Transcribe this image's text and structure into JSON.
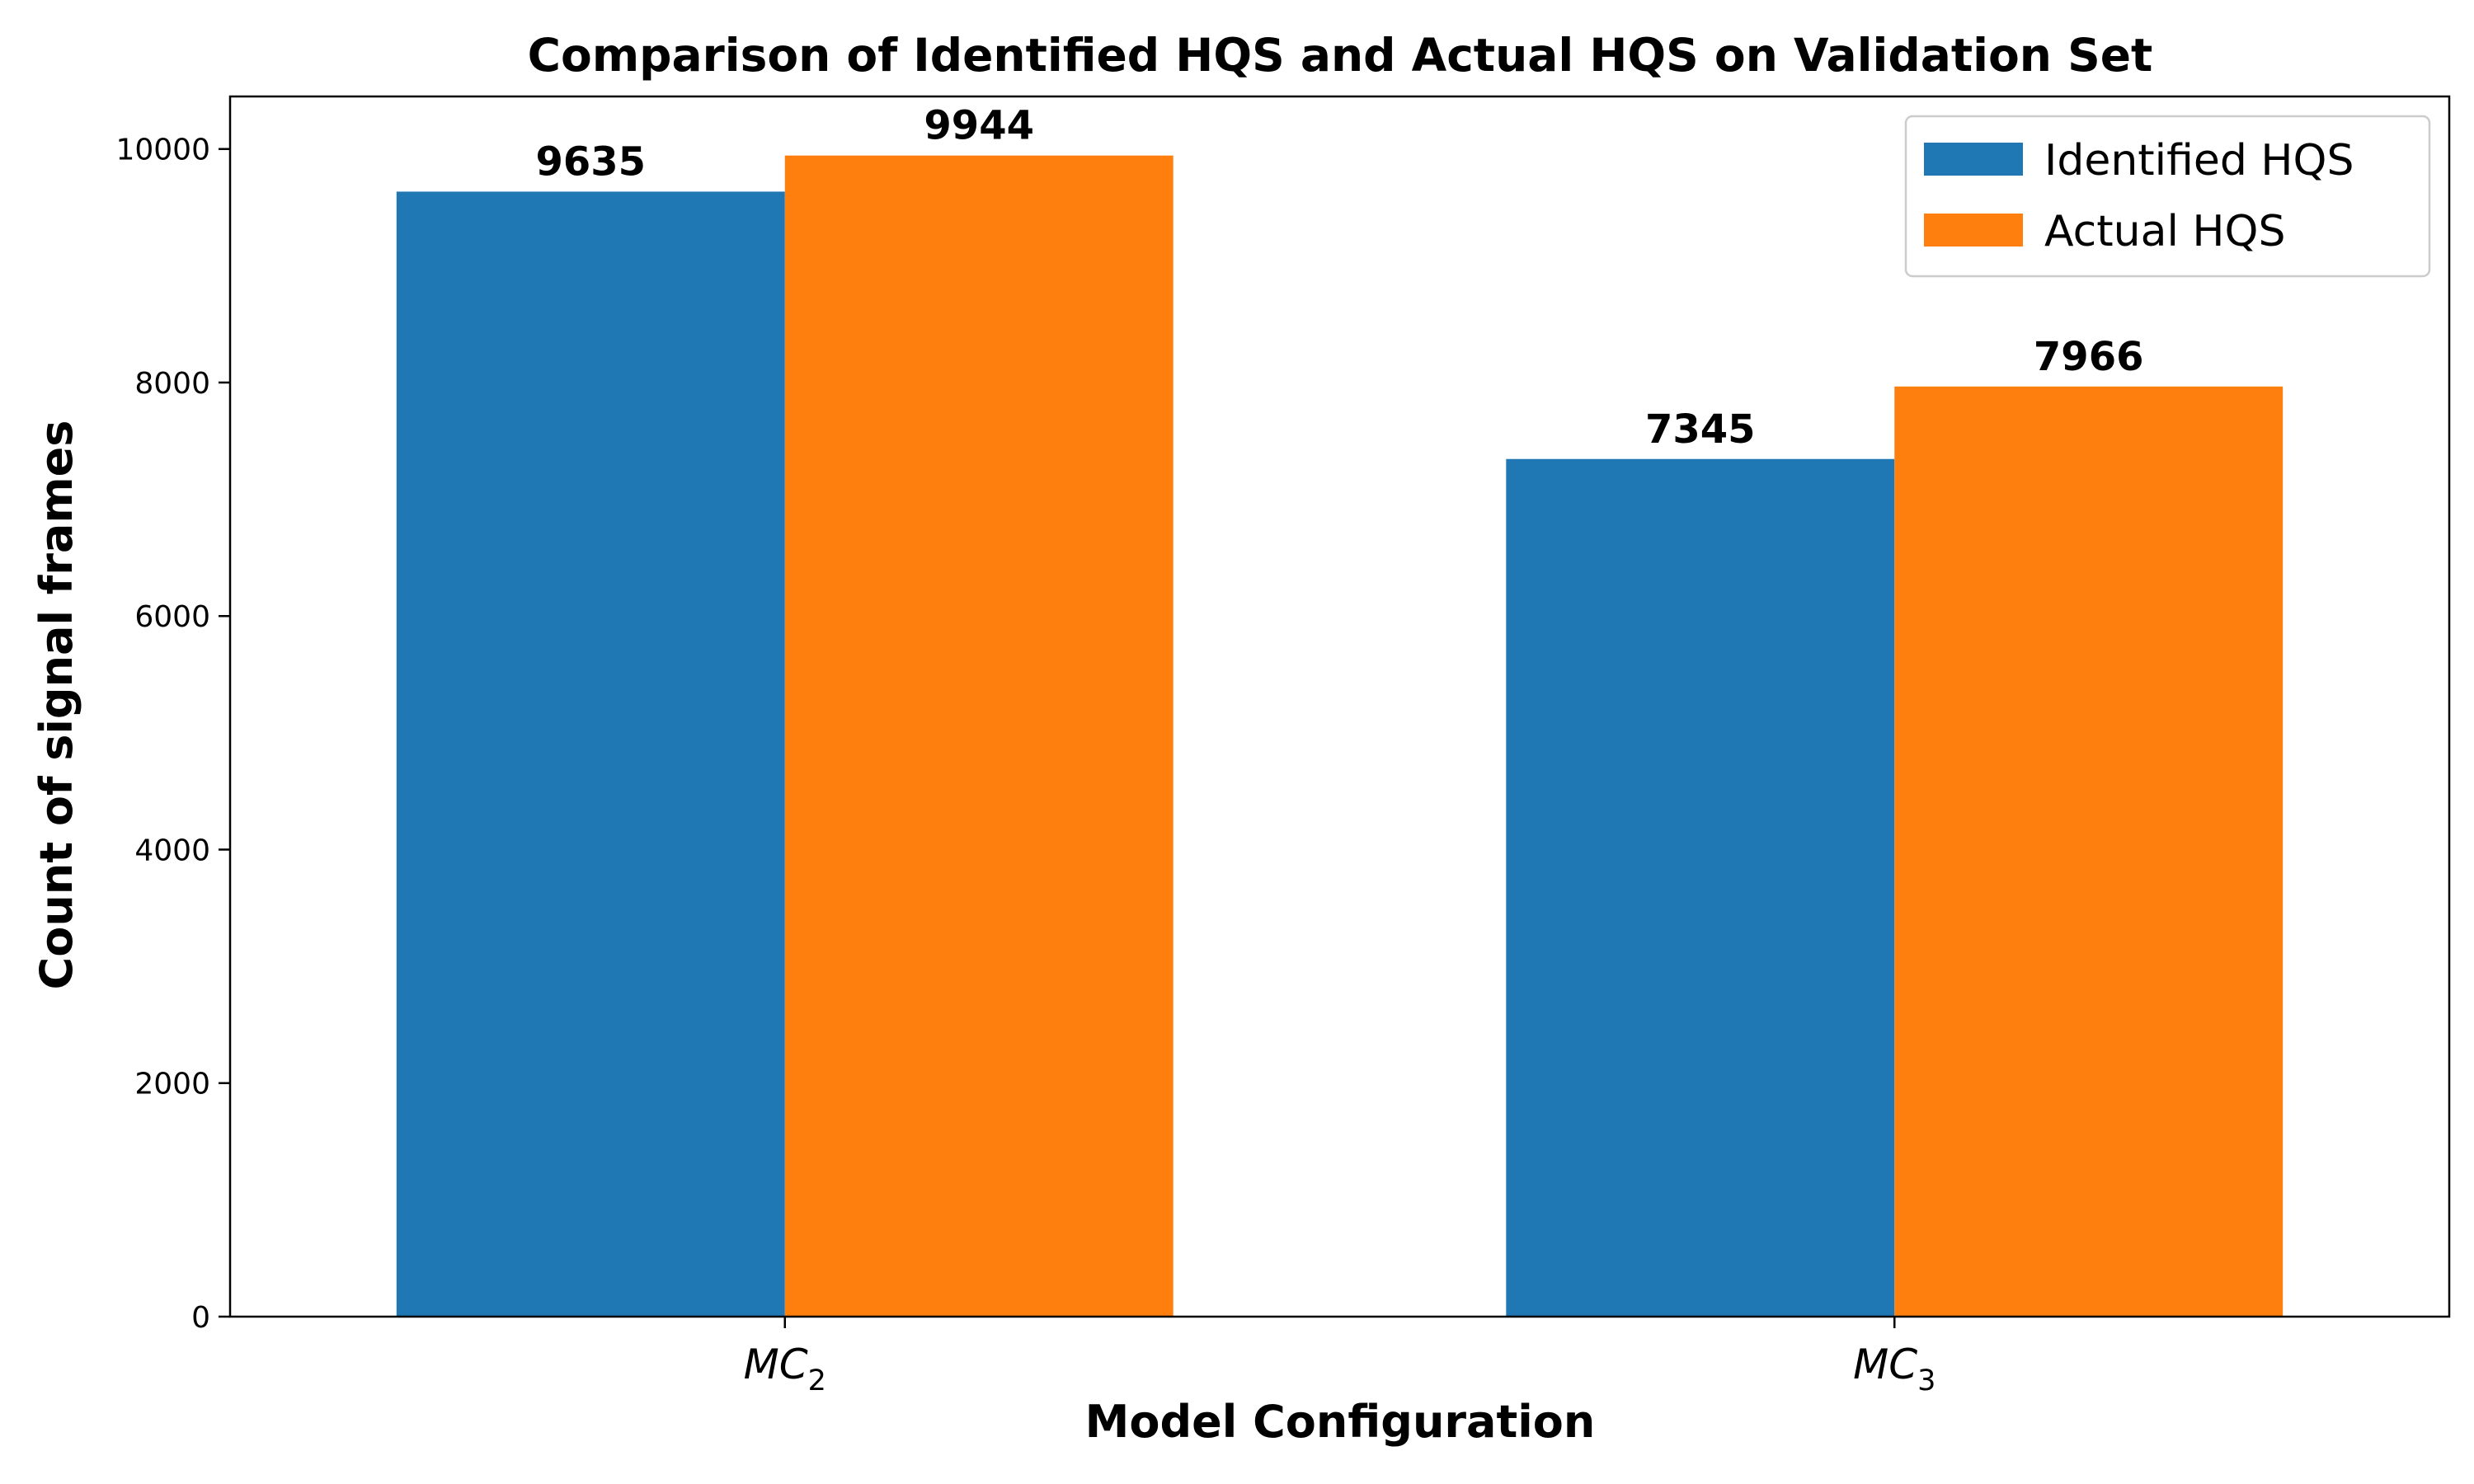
{
  "chart_data": {
    "type": "bar",
    "title": "Comparison of Identified HQS and Actual HQS on Validation Set",
    "xlabel": "Model Configuration",
    "ylabel": "Count of signal frames",
    "categories": [
      {
        "main": "MC",
        "sub": "2"
      },
      {
        "main": "MC",
        "sub": "3"
      }
    ],
    "series": [
      {
        "name": "Identified HQS",
        "color": "#1f77b4",
        "values": [
          9635,
          7345
        ]
      },
      {
        "name": "Actual HQS",
        "color": "#ff7f0e",
        "values": [
          9944,
          7966
        ]
      }
    ],
    "ylim": [
      0,
      10450
    ],
    "yticks": [
      0,
      2000,
      4000,
      6000,
      8000,
      10000
    ],
    "grid": false,
    "legend_position": "top-right",
    "data_labels": true
  }
}
